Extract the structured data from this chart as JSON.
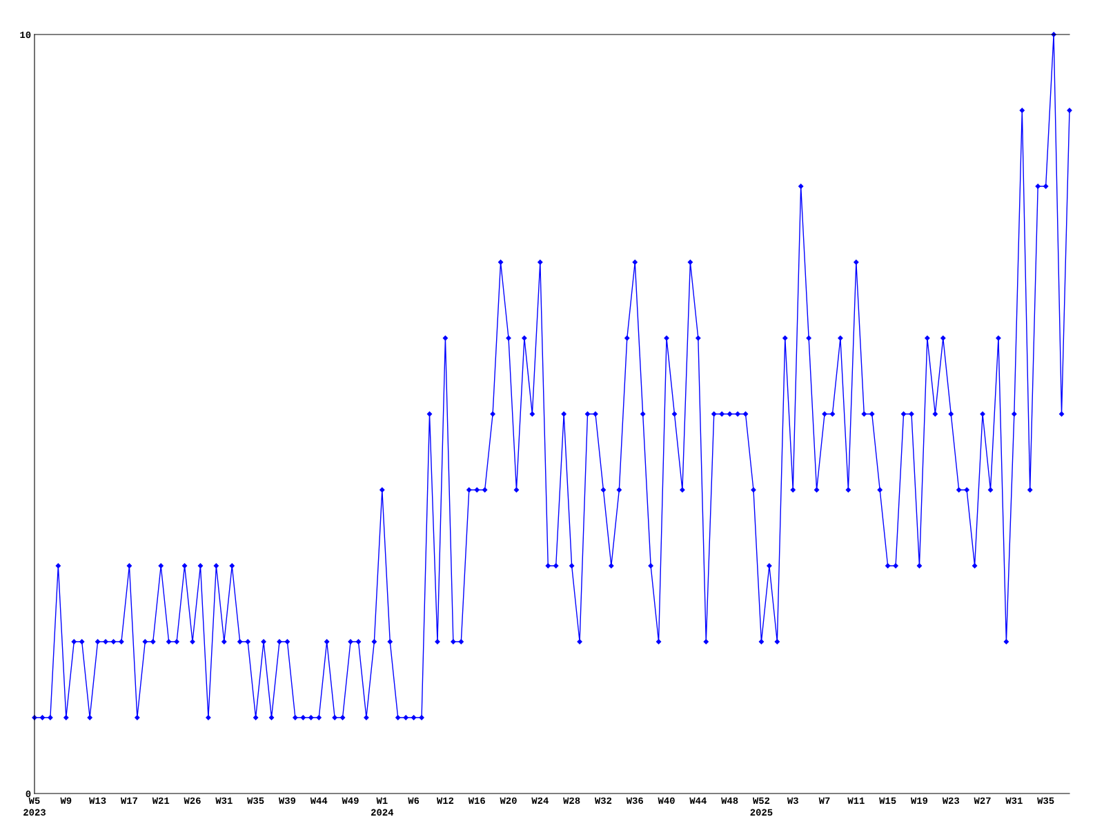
{
  "chart_data": {
    "type": "line",
    "categories": [
      "W5\n2023",
      null,
      null,
      null,
      "W9",
      null,
      null,
      null,
      "W13",
      null,
      null,
      null,
      "W17",
      null,
      null,
      null,
      "W21",
      null,
      null,
      null,
      "W26",
      null,
      null,
      null,
      "W31",
      null,
      null,
      null,
      "W35",
      null,
      null,
      null,
      "W39",
      null,
      null,
      null,
      "W44",
      null,
      null,
      null,
      "W49",
      null,
      null,
      null,
      "W1\n2024",
      null,
      null,
      null,
      "W6",
      null,
      null,
      null,
      "W12",
      null,
      null,
      null,
      "W16",
      null,
      null,
      null,
      "W20",
      null,
      null,
      null,
      "W24",
      null,
      null,
      null,
      "W28",
      null,
      null,
      null,
      "W32",
      null,
      null,
      null,
      "W36",
      null,
      null,
      null,
      "W40",
      null,
      null,
      null,
      "W44",
      null,
      null,
      null,
      "W48",
      null,
      null,
      null,
      "W52\n2025",
      null,
      null,
      null,
      "W3",
      null,
      null,
      null,
      "W7",
      null,
      null,
      null,
      "W11",
      null,
      null,
      null,
      "W15",
      null,
      null,
      null,
      "W19",
      null,
      null,
      null,
      "W23",
      null,
      null,
      null,
      "W27",
      null,
      null,
      null,
      "W31",
      null,
      null,
      null,
      "W35",
      null,
      null,
      null
    ],
    "series": [
      {
        "color": "#0000ff",
        "values": [
          1,
          1,
          1,
          3,
          1,
          2,
          2,
          1,
          2,
          2,
          2,
          2,
          3,
          1,
          2,
          2,
          3,
          2,
          2,
          3,
          2,
          3,
          1,
          3,
          2,
          3,
          2,
          2,
          1,
          2,
          1,
          2,
          2,
          1,
          1,
          1,
          1,
          2,
          1,
          1,
          2,
          2,
          1,
          2,
          4,
          2,
          1,
          1,
          1,
          1,
          5,
          2,
          6,
          2,
          2,
          4,
          4,
          4,
          5,
          7,
          6,
          4,
          6,
          5,
          7,
          3,
          3,
          5,
          3,
          2,
          5,
          5,
          4,
          3,
          4,
          6,
          7,
          5,
          3,
          2,
          6,
          5,
          4,
          7,
          6,
          2,
          5,
          5,
          5,
          5,
          5,
          4,
          2,
          3,
          2,
          6,
          4,
          8,
          6,
          4,
          5,
          5,
          6,
          4,
          7,
          5,
          5,
          4,
          3,
          3,
          5,
          5,
          3,
          6,
          5,
          6,
          5,
          4,
          4,
          3,
          5,
          4,
          6,
          2,
          5,
          9,
          4,
          8,
          8,
          10,
          5,
          9
        ]
      }
    ],
    "ylim": [
      0,
      10
    ],
    "yticks": [
      0,
      10
    ],
    "grid": false,
    "marker": "diamond",
    "line_style": "solid"
  }
}
